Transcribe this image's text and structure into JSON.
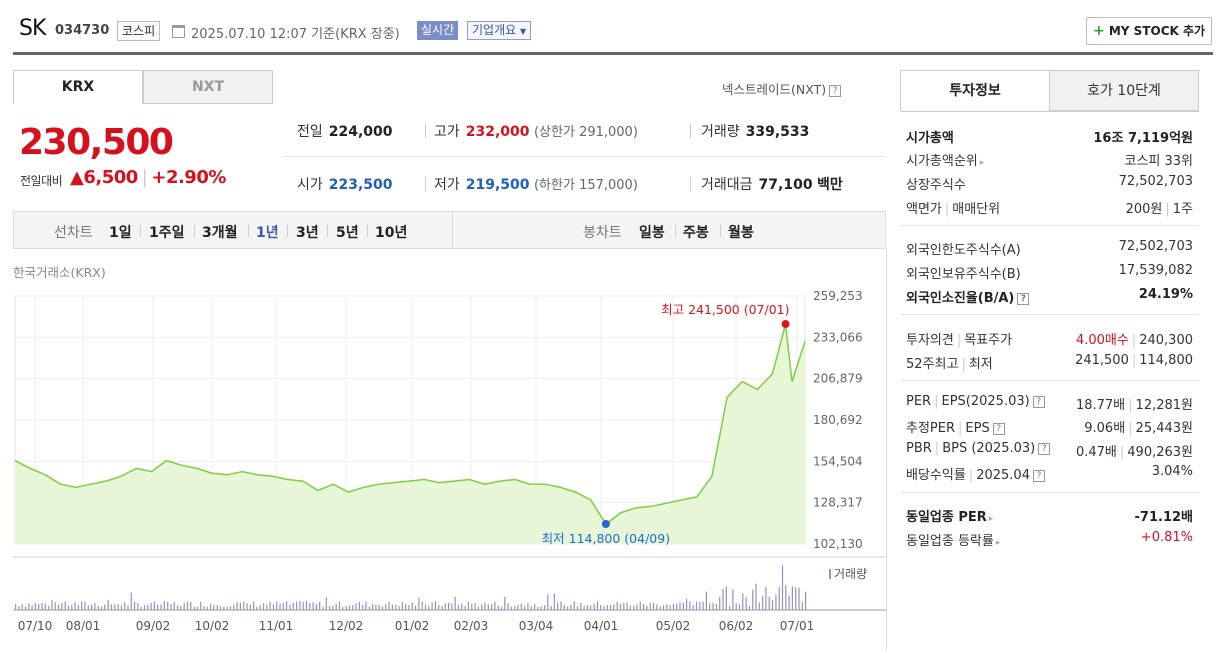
{
  "header": {
    "name": "SK",
    "code": "034730",
    "market": "코스피",
    "datetime": "2025.07.10 12:07",
    "basis": "기준(KRX 장중)",
    "realtime_badge": "실시간",
    "company_overview": "기업개요",
    "mystock_plus": "+",
    "mystock_label": "MY STOCK 추가"
  },
  "tabs": {
    "krx": "KRX",
    "nxt": "NXT",
    "nxt_link": "넥스트레이드(NXT)",
    "help": "?"
  },
  "price": {
    "current": "230,500",
    "change_label": "전일대비",
    "change_arrow": "▲",
    "change": "6,500",
    "change_sep": "|",
    "change_pct": "+2.90%"
  },
  "stats": {
    "prev_close_label": "전일",
    "prev_close": "224,000",
    "high_label": "고가",
    "high": "232,000",
    "upper_limit": "(상한가 291,000)",
    "volume_label": "거래량",
    "volume": "339,533",
    "open_label": "시가",
    "open": "223,500",
    "low_label": "저가",
    "low": "219,500",
    "lower_limit": "(하한가 157,000)",
    "amount_label": "거래대금",
    "amount": "77,100",
    "amount_unit": "백만"
  },
  "period_bar": {
    "line_label": "선차트",
    "ranges": [
      "1일",
      "1주일",
      "3개월",
      "1년",
      "3년",
      "5년",
      "10년"
    ],
    "active": "1년",
    "candle_label": "봉차트",
    "candles": [
      "일봉",
      "주봉",
      "월봉"
    ]
  },
  "chart_source": "한국거래소(KRX)",
  "chart_data": {
    "type": "area",
    "x": [
      "2024-07-10",
      "2024-07-17",
      "2024-07-24",
      "2024-07-31",
      "2024-08-07",
      "2024-08-14",
      "2024-08-21",
      "2024-08-28",
      "2024-09-04",
      "2024-09-11",
      "2024-09-18",
      "2024-09-25",
      "2024-10-02",
      "2024-10-09",
      "2024-10-16",
      "2024-10-23",
      "2024-10-30",
      "2024-11-06",
      "2024-11-13",
      "2024-11-20",
      "2024-11-27",
      "2024-12-04",
      "2024-12-11",
      "2024-12-18",
      "2024-12-25",
      "2025-01-01",
      "2025-01-08",
      "2025-01-15",
      "2025-01-22",
      "2025-01-29",
      "2025-02-05",
      "2025-02-12",
      "2025-02-19",
      "2025-02-26",
      "2025-03-05",
      "2025-03-12",
      "2025-03-19",
      "2025-03-26",
      "2025-04-02",
      "2025-04-09",
      "2025-04-16",
      "2025-04-23",
      "2025-04-30",
      "2025-05-07",
      "2025-05-14",
      "2025-05-21",
      "2025-05-28",
      "2025-06-04",
      "2025-06-11",
      "2025-06-18",
      "2025-06-25",
      "2025-07-01",
      "2025-07-04",
      "2025-07-10"
    ],
    "values": [
      155000,
      150000,
      146000,
      140000,
      138000,
      140000,
      142000,
      145000,
      150000,
      148000,
      155000,
      152000,
      150000,
      147000,
      146000,
      148000,
      146000,
      145000,
      143000,
      142000,
      136000,
      140000,
      135000,
      138000,
      140000,
      141000,
      142000,
      143000,
      141000,
      142000,
      143000,
      140000,
      142000,
      143000,
      140000,
      140000,
      138000,
      135000,
      130000,
      114800,
      122000,
      125000,
      126000,
      128000,
      130000,
      132000,
      145000,
      195000,
      205000,
      200000,
      210000,
      241500,
      205000,
      230500
    ],
    "max_label": "최고 241,500 (07/01)",
    "min_label": "최저 114,800 (04/09)",
    "y_ticks": [
      "259,253",
      "233,066",
      "206,879",
      "180,692",
      "154,504",
      "128,317",
      "102,130"
    ],
    "ylim": [
      102130,
      259253
    ],
    "x_ticks": [
      "07/10",
      "08/01",
      "09/02",
      "10/02",
      "11/01",
      "12/02",
      "01/02",
      "02/03",
      "03/04",
      "04/01",
      "05/02",
      "06/02",
      "07/01"
    ],
    "volume_label": "거래량",
    "colors": {
      "line": "#7fcf3e",
      "fill": "#e6f6d6",
      "max": "#e0141e",
      "min": "#1f6cd1",
      "volume": "#9b8ec4"
    }
  },
  "right_panel": {
    "tab_invest": "투자정보",
    "tab_orderbook": "호가 10단계",
    "market_cap_label": "시가총액",
    "market_cap": "16조 7,119억원",
    "market_cap_rank_label": "시가총액순위",
    "market_cap_rank": "코스피 33위",
    "shares_label": "상장주식수",
    "shares": "72,502,703",
    "par_label": "액면가",
    "lot_label": "매매단위",
    "par": "200원",
    "lot": "1주",
    "foreign_limit_label": "외국인한도주식수(A)",
    "foreign_limit": "72,502,703",
    "foreign_hold_label": "외국인보유주식수(B)",
    "foreign_hold": "17,539,082",
    "foreign_ratio_label": "외국인소진율(B/A)",
    "foreign_ratio": "24.19%",
    "opinion_label": "투자의견",
    "target_label": "목표주가",
    "opinion": "4.00매수",
    "target": "240,300",
    "w52_label": "52주최고",
    "w52_low_label": "최저",
    "w52_high": "241,500",
    "w52_low": "114,800",
    "per_label": "PER",
    "eps_label": "EPS(2025.03)",
    "per": "18.77배",
    "eps": "12,281원",
    "est_per_label": "추정PER",
    "est_eps_label": "EPS",
    "est_per": "9.06배",
    "est_eps": "25,443원",
    "pbr_label": "PBR",
    "bps_label": "BPS (2025.03)",
    "pbr": "0.47배",
    "bps": "490,263원",
    "div_label": "배당수익률",
    "div_period": "2025.04",
    "div": "3.04%",
    "sector_per_label": "동일업종 PER",
    "sector_per": "-71.12배",
    "sector_chg_label": "동일업종 등락률",
    "sector_chg": "+0.81%"
  }
}
